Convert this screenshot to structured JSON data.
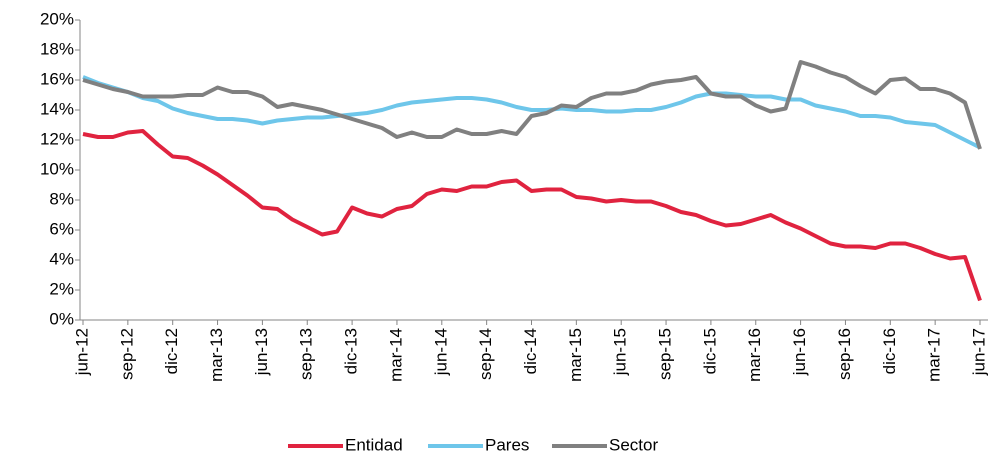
{
  "chart_data": {
    "type": "line",
    "categories": [
      "jun-12",
      null,
      null,
      "sep-12",
      null,
      null,
      "dic-12",
      null,
      null,
      "mar-13",
      null,
      null,
      "jun-13",
      null,
      null,
      "sep-13",
      null,
      null,
      "dic-13",
      null,
      null,
      "mar-14",
      null,
      null,
      "jun-14",
      null,
      null,
      "sep-14",
      null,
      null,
      "dic-14",
      null,
      null,
      "mar-15",
      null,
      null,
      "jun-15",
      null,
      null,
      "sep-15",
      null,
      null,
      "dic-15",
      null,
      null,
      "mar-16",
      null,
      null,
      "jun-16",
      null,
      null,
      "sep-16",
      null,
      null,
      "dic-16",
      null,
      null,
      "mar-17",
      null,
      null,
      "jun-17"
    ],
    "series": [
      {
        "name": "Entidad",
        "color": "#e0233f",
        "values": [
          12.4,
          12.2,
          12.2,
          12.5,
          12.6,
          11.7,
          10.9,
          10.8,
          10.3,
          9.7,
          9.0,
          8.3,
          7.5,
          7.4,
          6.7,
          6.2,
          5.7,
          5.9,
          7.5,
          7.1,
          6.9,
          7.4,
          7.6,
          8.4,
          8.7,
          8.6,
          8.9,
          8.9,
          9.2,
          9.3,
          8.6,
          8.7,
          8.7,
          8.2,
          8.1,
          7.9,
          8.0,
          7.9,
          7.9,
          7.6,
          7.2,
          7.0,
          6.6,
          6.3,
          6.4,
          6.7,
          7.0,
          6.5,
          6.1,
          5.6,
          5.1,
          4.9,
          4.9,
          4.8,
          5.1,
          5.1,
          4.8,
          4.4,
          4.1,
          4.2,
          1.3
        ]
      },
      {
        "name": "Pares",
        "color": "#6ec6ea",
        "values": [
          16.2,
          15.8,
          15.5,
          15.2,
          14.8,
          14.6,
          14.1,
          13.8,
          13.6,
          13.4,
          13.4,
          13.3,
          13.1,
          13.3,
          13.4,
          13.5,
          13.5,
          13.6,
          13.7,
          13.8,
          14.0,
          14.3,
          14.5,
          14.6,
          14.7,
          14.8,
          14.8,
          14.7,
          14.5,
          14.2,
          14.0,
          14.0,
          14.1,
          14.0,
          14.0,
          13.9,
          13.9,
          14.0,
          14.0,
          14.2,
          14.5,
          14.9,
          15.1,
          15.1,
          15.0,
          14.9,
          14.9,
          14.7,
          14.7,
          14.3,
          14.1,
          13.9,
          13.6,
          13.6,
          13.5,
          13.2,
          13.1,
          13.0,
          12.5,
          12.0,
          11.5
        ]
      },
      {
        "name": "Sector",
        "color": "#808080",
        "values": [
          16.0,
          15.7,
          15.4,
          15.2,
          14.9,
          14.9,
          14.9,
          15.0,
          15.0,
          15.5,
          15.2,
          15.2,
          14.9,
          14.2,
          14.4,
          14.2,
          14.0,
          13.7,
          13.4,
          13.1,
          12.8,
          12.2,
          12.5,
          12.2,
          12.2,
          12.7,
          12.4,
          12.4,
          12.6,
          12.4,
          13.6,
          13.8,
          14.3,
          14.2,
          14.8,
          15.1,
          15.1,
          15.3,
          15.7,
          15.9,
          16.0,
          16.2,
          15.1,
          14.9,
          14.9,
          14.3,
          13.9,
          14.1,
          17.2,
          16.9,
          16.5,
          16.2,
          15.6,
          15.1,
          16.0,
          16.1,
          15.4,
          15.4,
          15.1,
          14.5,
          11.4
        ]
      }
    ],
    "ylim": [
      0,
      20
    ],
    "yticks": [
      {
        "value": 0,
        "label": "0%"
      },
      {
        "value": 2,
        "label": "2%"
      },
      {
        "value": 4,
        "label": "4%"
      },
      {
        "value": 6,
        "label": "6%"
      },
      {
        "value": 8,
        "label": "8%"
      },
      {
        "value": 10,
        "label": "10%"
      },
      {
        "value": 12,
        "label": "12%"
      },
      {
        "value": 14,
        "label": "14%"
      },
      {
        "value": 16,
        "label": "16%"
      },
      {
        "value": 18,
        "label": "18%"
      },
      {
        "value": 20,
        "label": "20%"
      }
    ],
    "grid": false,
    "legend": "bottom"
  }
}
